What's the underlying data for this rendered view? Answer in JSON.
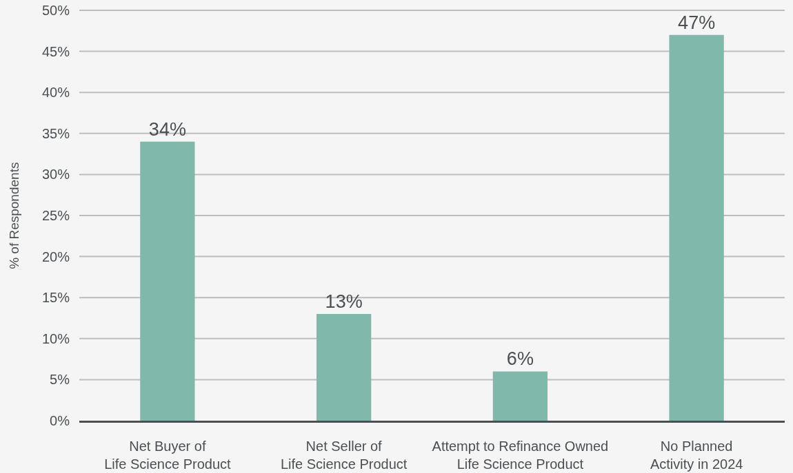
{
  "chart_data": {
    "type": "bar",
    "ylabel": "% of Respondents",
    "categories": [
      "Net Buyer of\nLife Science Product",
      "Net Seller of\nLife Science Product",
      "Attempt to Refinance Owned\nLife Science Product",
      "No Planned\nActivity in 2024"
    ],
    "values": [
      34,
      13,
      6,
      47
    ],
    "value_labels": [
      "34%",
      "13%",
      "6%",
      "47%"
    ],
    "color": "#80b9aa",
    "ylim": [
      0,
      50
    ],
    "yticks": [
      {
        "value": 0,
        "label": "0%"
      },
      {
        "value": 5,
        "label": "5%"
      },
      {
        "value": 10,
        "label": "10%"
      },
      {
        "value": 15,
        "label": "15%"
      },
      {
        "value": 20,
        "label": "20%"
      },
      {
        "value": 25,
        "label": "25%"
      },
      {
        "value": 30,
        "label": "30%"
      },
      {
        "value": 35,
        "label": "35%"
      },
      {
        "value": 40,
        "label": "40%"
      },
      {
        "value": 45,
        "label": "45%"
      },
      {
        "value": 50,
        "label": "50%"
      }
    ],
    "grid": "y"
  }
}
